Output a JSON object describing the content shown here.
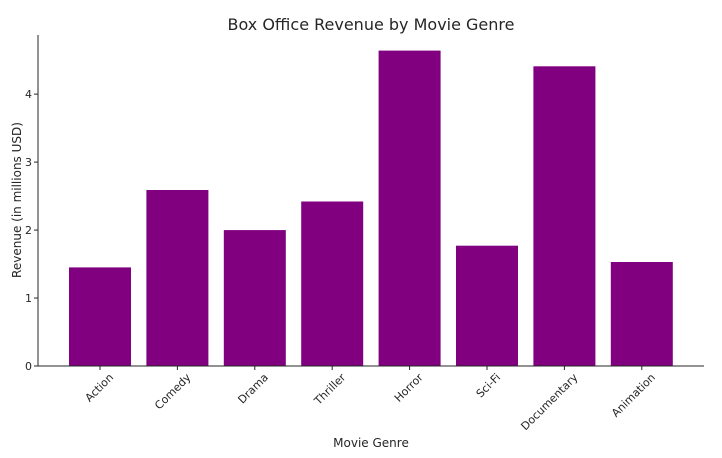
{
  "chart_data": {
    "type": "bar",
    "title": "Box Office Revenue by Movie Genre",
    "xlabel": "Movie Genre",
    "ylabel": "Revenue (in millions USD)",
    "categories": [
      "Action",
      "Comedy",
      "Drama",
      "Thriller",
      "Horror",
      "Sci-Fi",
      "Documentary",
      "Animation"
    ],
    "values": [
      1.45,
      2.59,
      2.0,
      2.42,
      4.64,
      1.77,
      4.41,
      1.53
    ],
    "ylim": [
      0,
      4.87
    ],
    "yticks": [
      0,
      1,
      2,
      3,
      4
    ],
    "bar_color": "#800080",
    "grid": false,
    "legend": "none"
  }
}
